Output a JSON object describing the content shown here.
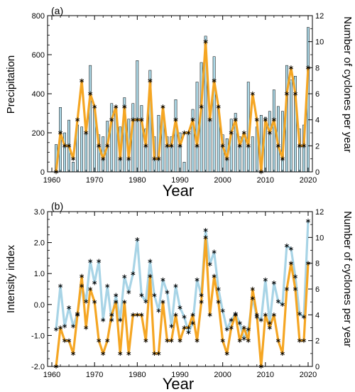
{
  "chart_data": [
    {
      "panel_label": "(a)",
      "type": "bar",
      "xlabel": "Year",
      "ylabel_left": "Precipitation",
      "ylabel_right": "Number of cyclones per year",
      "x_ticks": [
        "1960",
        "1970",
        "1980",
        "1990",
        "2000",
        "2010",
        "2020"
      ],
      "y_left_ticks": [
        "0",
        "200",
        "400",
        "600",
        "800"
      ],
      "y_right_ticks": [
        "0",
        "2",
        "4",
        "6",
        "8",
        "10",
        "12"
      ],
      "xlim": [
        1959,
        2021
      ],
      "ylim_left": [
        0,
        800
      ],
      "ylim_right": [
        0,
        12
      ],
      "years": [
        1961,
        1962,
        1963,
        1964,
        1965,
        1966,
        1967,
        1968,
        1969,
        1970,
        1971,
        1972,
        1973,
        1974,
        1975,
        1976,
        1977,
        1978,
        1979,
        1980,
        1981,
        1982,
        1983,
        1984,
        1985,
        1986,
        1987,
        1988,
        1989,
        1990,
        1991,
        1992,
        1993,
        1994,
        1995,
        1996,
        1997,
        1998,
        1999,
        2000,
        2001,
        2002,
        2003,
        2004,
        2005,
        2006,
        2007,
        2008,
        2009,
        2010,
        2011,
        2012,
        2013,
        2014,
        2015,
        2016,
        2017,
        2018,
        2019,
        2020
      ],
      "series": [
        {
          "name": "Precipitation",
          "axis": "left",
          "render": "bar",
          "color": "#add8e6",
          "values": [
            140,
            330,
            200,
            265,
            50,
            240,
            230,
            210,
            545,
            330,
            190,
            180,
            260,
            350,
            320,
            230,
            380,
            270,
            350,
            570,
            340,
            220,
            520,
            180,
            290,
            310,
            180,
            180,
            370,
            200,
            50,
            200,
            320,
            460,
            560,
            695,
            315,
            590,
            340,
            190,
            170,
            270,
            300,
            180,
            180,
            460,
            180,
            230,
            290,
            280,
            310,
            420,
            335,
            310,
            545,
            470,
            490,
            220,
            240,
            740
          ],
          "markers": false
        },
        {
          "name": "Number of cyclones per year",
          "axis": "right",
          "render": "line",
          "color": "#f5a623",
          "values": [
            0,
            3,
            2,
            2,
            1,
            4,
            7,
            3,
            6,
            5,
            2,
            1,
            2,
            4,
            5,
            1,
            5,
            1,
            4,
            4,
            4,
            2,
            7,
            1,
            1,
            5,
            2,
            2,
            4,
            2,
            3,
            3,
            4,
            2,
            5,
            10,
            4,
            7,
            5,
            2,
            1,
            3,
            4,
            2,
            3,
            2,
            6,
            4,
            0,
            4,
            3,
            4,
            2,
            1,
            6,
            8,
            6,
            2,
            2,
            8
          ],
          "marker": "*",
          "marker_color": "#000000"
        }
      ]
    },
    {
      "panel_label": "(b)",
      "type": "line",
      "xlabel": "Year",
      "ylabel_left": "Intensity index",
      "ylabel_right": "Number of cyclones per year",
      "x_ticks": [
        "1960",
        "1970",
        "1980",
        "1990",
        "2000",
        "2010",
        "2020"
      ],
      "y_left_ticks": [
        "-2.0",
        "-1.0",
        "0.0",
        "1.0",
        "2.0",
        "3.0"
      ],
      "y_right_ticks": [
        "0",
        "2",
        "4",
        "6",
        "8",
        "10",
        "12"
      ],
      "xlim": [
        1959,
        2021
      ],
      "ylim_left": [
        -2.0,
        3.0
      ],
      "ylim_right": [
        0,
        12
      ],
      "years": [
        1961,
        1962,
        1963,
        1964,
        1965,
        1966,
        1967,
        1968,
        1969,
        1970,
        1971,
        1972,
        1973,
        1974,
        1975,
        1976,
        1977,
        1978,
        1979,
        1980,
        1981,
        1982,
        1983,
        1984,
        1985,
        1986,
        1987,
        1988,
        1989,
        1990,
        1991,
        1992,
        1993,
        1994,
        1995,
        1996,
        1997,
        1998,
        1999,
        2000,
        2001,
        2002,
        2003,
        2004,
        2005,
        2006,
        2007,
        2008,
        2009,
        2010,
        2011,
        2012,
        2013,
        2014,
        2015,
        2016,
        2017,
        2018,
        2019,
        2020
      ],
      "series": [
        {
          "name": "Intensity index",
          "axis": "left",
          "render": "line",
          "color": "#a8d4e6",
          "values": [
            -0.8,
            0.6,
            -0.7,
            -0.1,
            -0.7,
            -0.3,
            0.6,
            0.1,
            1.4,
            0.7,
            1.4,
            -0.5,
            0.6,
            -0.5,
            0.3,
            -0.5,
            0.9,
            0.4,
            1.0,
            2.1,
            0.3,
            0.1,
            1.4,
            0.3,
            -0.2,
            0.8,
            0.4,
            -0.7,
            0.6,
            -0.1,
            -0.4,
            -0.9,
            -0.6,
            0.8,
            0.3,
            2.4,
            1.3,
            1.7,
            0.5,
            -0.2,
            -0.8,
            -0.5,
            -0.3,
            -0.6,
            -1.1,
            -0.8,
            0.2,
            -0.4,
            -0.5,
            0.8,
            -0.6,
            0.7,
            0.1,
            0.0,
            1.9,
            1.8,
            0.9,
            -0.3,
            -0.4,
            2.7
          ],
          "marker": "*",
          "marker_color": "#000000"
        },
        {
          "name": "Number of cyclones per year",
          "axis": "right",
          "render": "line",
          "color": "#f5a623",
          "values": [
            0,
            3,
            2,
            2,
            1,
            4,
            7,
            3,
            6,
            5,
            2,
            1,
            2,
            4,
            5,
            1,
            5,
            1,
            4,
            4,
            4,
            2,
            7,
            1,
            1,
            5,
            2,
            2,
            4,
            2,
            3,
            3,
            4,
            2,
            5,
            10,
            4,
            7,
            5,
            2,
            1,
            3,
            4,
            2,
            3,
            2,
            6,
            4,
            0,
            4,
            3,
            4,
            2,
            1,
            6,
            8,
            6,
            2,
            2,
            8
          ],
          "marker": "*",
          "marker_color": "#000000"
        }
      ]
    }
  ]
}
